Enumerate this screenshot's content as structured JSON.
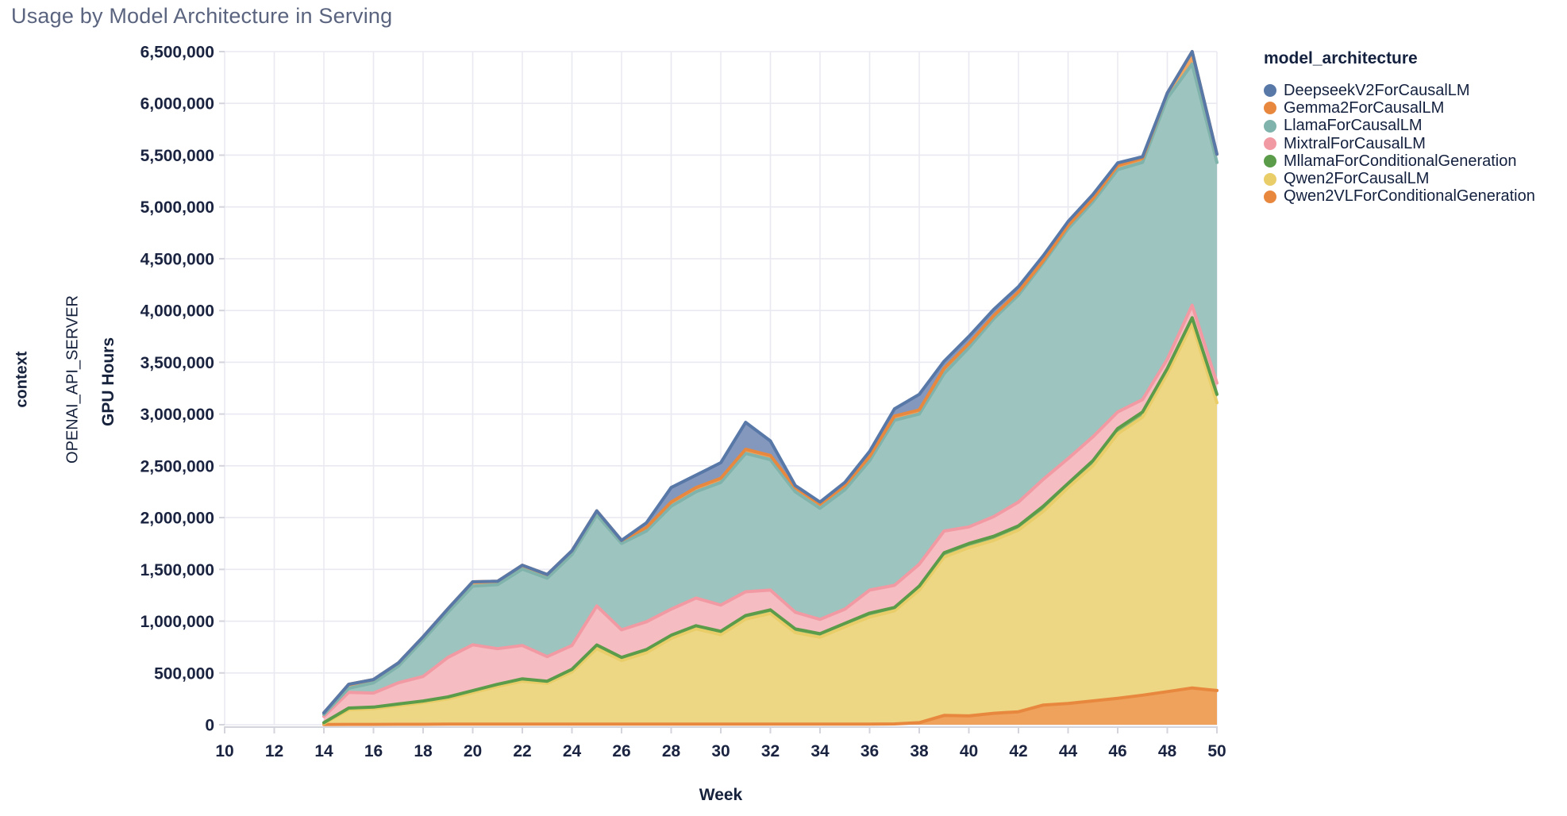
{
  "header": {
    "title": "Usage by Model Architecture in Serving"
  },
  "facet": {
    "row_title": "context",
    "row_value": "OPENAI_API_SERVER"
  },
  "axes": {
    "x_label": "Week",
    "y_label": "GPU Hours"
  },
  "legend": {
    "title": "model_architecture"
  },
  "colors": {
    "grid": "#e9e9f1",
    "axis_line": "#d4d4dd",
    "tick_label": "#1a2340",
    "title": "#5a647f"
  },
  "chart_data": {
    "type": "area",
    "stacked": true,
    "title": "Usage by Model Architecture in Serving",
    "xlabel": "Week",
    "ylabel": "GPU Hours",
    "legend_title": "model_architecture",
    "legend_position": "top-right",
    "grid": true,
    "x_domain": [
      10,
      50
    ],
    "ylim": [
      0,
      6500000
    ],
    "x_ticks": [
      {
        "v": 10,
        "label": "10"
      },
      {
        "v": 12,
        "label": "12"
      },
      {
        "v": 14,
        "label": "14"
      },
      {
        "v": 16,
        "label": "16"
      },
      {
        "v": 18,
        "label": "18"
      },
      {
        "v": 20,
        "label": "20"
      },
      {
        "v": 22,
        "label": "22"
      },
      {
        "v": 24,
        "label": "24"
      },
      {
        "v": 26,
        "label": "26"
      },
      {
        "v": 28,
        "label": "28"
      },
      {
        "v": 30,
        "label": "30"
      },
      {
        "v": 32,
        "label": "32"
      },
      {
        "v": 34,
        "label": "34"
      },
      {
        "v": 36,
        "label": "36"
      },
      {
        "v": 38,
        "label": "38"
      },
      {
        "v": 40,
        "label": "40"
      },
      {
        "v": 42,
        "label": "42"
      },
      {
        "v": 44,
        "label": "44"
      },
      {
        "v": 46,
        "label": "46"
      },
      {
        "v": 48,
        "label": "48"
      },
      {
        "v": 50,
        "label": "50"
      }
    ],
    "y_ticks": [
      {
        "v": 0,
        "label": "0"
      },
      {
        "v": 500000,
        "label": "500,000"
      },
      {
        "v": 1000000,
        "label": "1,000,000"
      },
      {
        "v": 1500000,
        "label": "1,500,000"
      },
      {
        "v": 2000000,
        "label": "2,000,000"
      },
      {
        "v": 2500000,
        "label": "2,500,000"
      },
      {
        "v": 3000000,
        "label": "3,000,000"
      },
      {
        "v": 3500000,
        "label": "3,500,000"
      },
      {
        "v": 4000000,
        "label": "4,000,000"
      },
      {
        "v": 4500000,
        "label": "4,500,000"
      },
      {
        "v": 5000000,
        "label": "5,000,000"
      },
      {
        "v": 5500000,
        "label": "5,500,000"
      },
      {
        "v": 6000000,
        "label": "6,000,000"
      },
      {
        "v": 6500000,
        "label": "6,500,000"
      }
    ],
    "x": [
      14,
      15,
      16,
      17,
      18,
      19,
      20,
      21,
      22,
      23,
      24,
      25,
      26,
      27,
      28,
      29,
      30,
      31,
      32,
      33,
      34,
      35,
      36,
      37,
      38,
      39,
      40,
      41,
      42,
      43,
      44,
      45,
      46,
      47,
      48,
      49,
      50
    ],
    "stack_order": [
      "Qwen2VLForConditionalGeneration",
      "Qwen2ForCausalLM",
      "MllamaForConditionalGeneration",
      "MixtralForCausalLM",
      "LlamaForCausalLM",
      "Gemma2ForCausalLM",
      "DeepseekV2ForCausalLM"
    ],
    "series": [
      {
        "name": "DeepseekV2ForCausalLM",
        "color": "#5878a8",
        "fill": "#8497bd",
        "values": [
          0,
          0,
          0,
          0,
          0,
          0,
          0,
          0,
          0,
          0,
          0,
          0,
          0,
          45000,
          140000,
          120000,
          150000,
          260000,
          140000,
          20000,
          20000,
          30000,
          50000,
          70000,
          150000,
          70000,
          70000,
          60000,
          50000,
          50000,
          40000,
          40000,
          25000,
          15000,
          0,
          0,
          0
        ]
      },
      {
        "name": "Gemma2ForCausalLM",
        "color": "#e8883f",
        "fill": "#efa55f",
        "values": [
          15000,
          38000,
          31000,
          30000,
          31000,
          34000,
          42000,
          32000,
          37000,
          35000,
          36000,
          39000,
          29000,
          35000,
          40000,
          40000,
          40000,
          40000,
          40000,
          40000,
          40000,
          40000,
          40000,
          40000,
          40000,
          50000,
          40000,
          30000,
          30000,
          20000,
          30000,
          30000,
          40000,
          40000,
          50000,
          120000,
          80000
        ]
      },
      {
        "name": "LlamaForCausalLM",
        "color": "#7fb3ab",
        "fill": "#9dc4be",
        "values": [
          20000,
          39000,
          99000,
          161000,
          352000,
          436000,
          566000,
          619000,
          738000,
          757000,
          879000,
          879000,
          834000,
          876000,
          994000,
          1027000,
          1185000,
          1336000,
          1260000,
          1164000,
          1073000,
          1154000,
          1250000,
          1594000,
          1450000,
          1520000,
          1730000,
          1910000,
          2000000,
          2090000,
          2220000,
          2270000,
          2340000,
          2290000,
          2520000,
          2330000,
          2130000
        ]
      },
      {
        "name": "MixtralForCausalLM",
        "color": "#f29aa3",
        "fill": "#f5bcc1",
        "values": [
          60000,
          152000,
          136000,
          205000,
          237000,
          382000,
          443000,
          344000,
          322000,
          238000,
          230000,
          377000,
          267000,
          268000,
          252000,
          267000,
          253000,
          229000,
          191000,
          161000,
          138000,
          137000,
          222000,
          214000,
          212000,
          210000,
          160000,
          190000,
          230000,
          260000,
          240000,
          230000,
          160000,
          120000,
          90000,
          120000,
          110000
        ]
      },
      {
        "name": "MllamaForConditionalGeneration",
        "color": "#5a9c4a",
        "fill": "#82b470",
        "values": [
          8000,
          16000,
          15000,
          15000,
          16000,
          18000,
          19000,
          20000,
          23000,
          20000,
          25000,
          35000,
          30000,
          31000,
          29000,
          31000,
          32000,
          35000,
          34000,
          35000,
          34000,
          34000,
          38000,
          32000,
          38000,
          40000,
          40000,
          40000,
          40000,
          50000,
          40000,
          50000,
          50000,
          50000,
          50000,
          60000,
          80000
        ]
      },
      {
        "name": "Qwen2ForCausalLM",
        "color": "#e9cd69",
        "fill": "#edd784",
        "values": [
          10000,
          142000,
          152000,
          181000,
          209000,
          245000,
          305000,
          365000,
          415000,
          395000,
          505000,
          730000,
          615000,
          690000,
          830000,
          920000,
          865000,
          1015000,
          1070000,
          885000,
          840000,
          940000,
          1035000,
          1092000,
          1280000,
          1530000,
          1625000,
          1670000,
          1755000,
          1870000,
          2085000,
          2270000,
          2555000,
          2685000,
          3070000,
          3515000,
          2780000
        ]
      },
      {
        "name": "Qwen2VLForConditionalGeneration",
        "color": "#e8883f",
        "fill": "#efa25c",
        "values": [
          2000,
          3000,
          3000,
          4000,
          4000,
          5000,
          5000,
          5000,
          5000,
          5000,
          5000,
          5000,
          5000,
          5000,
          5000,
          5000,
          5000,
          5000,
          5000,
          5000,
          5000,
          5000,
          5000,
          8000,
          20000,
          90000,
          85000,
          110000,
          125000,
          190000,
          205000,
          230000,
          255000,
          285000,
          320000,
          355000,
          330000
        ]
      }
    ]
  }
}
